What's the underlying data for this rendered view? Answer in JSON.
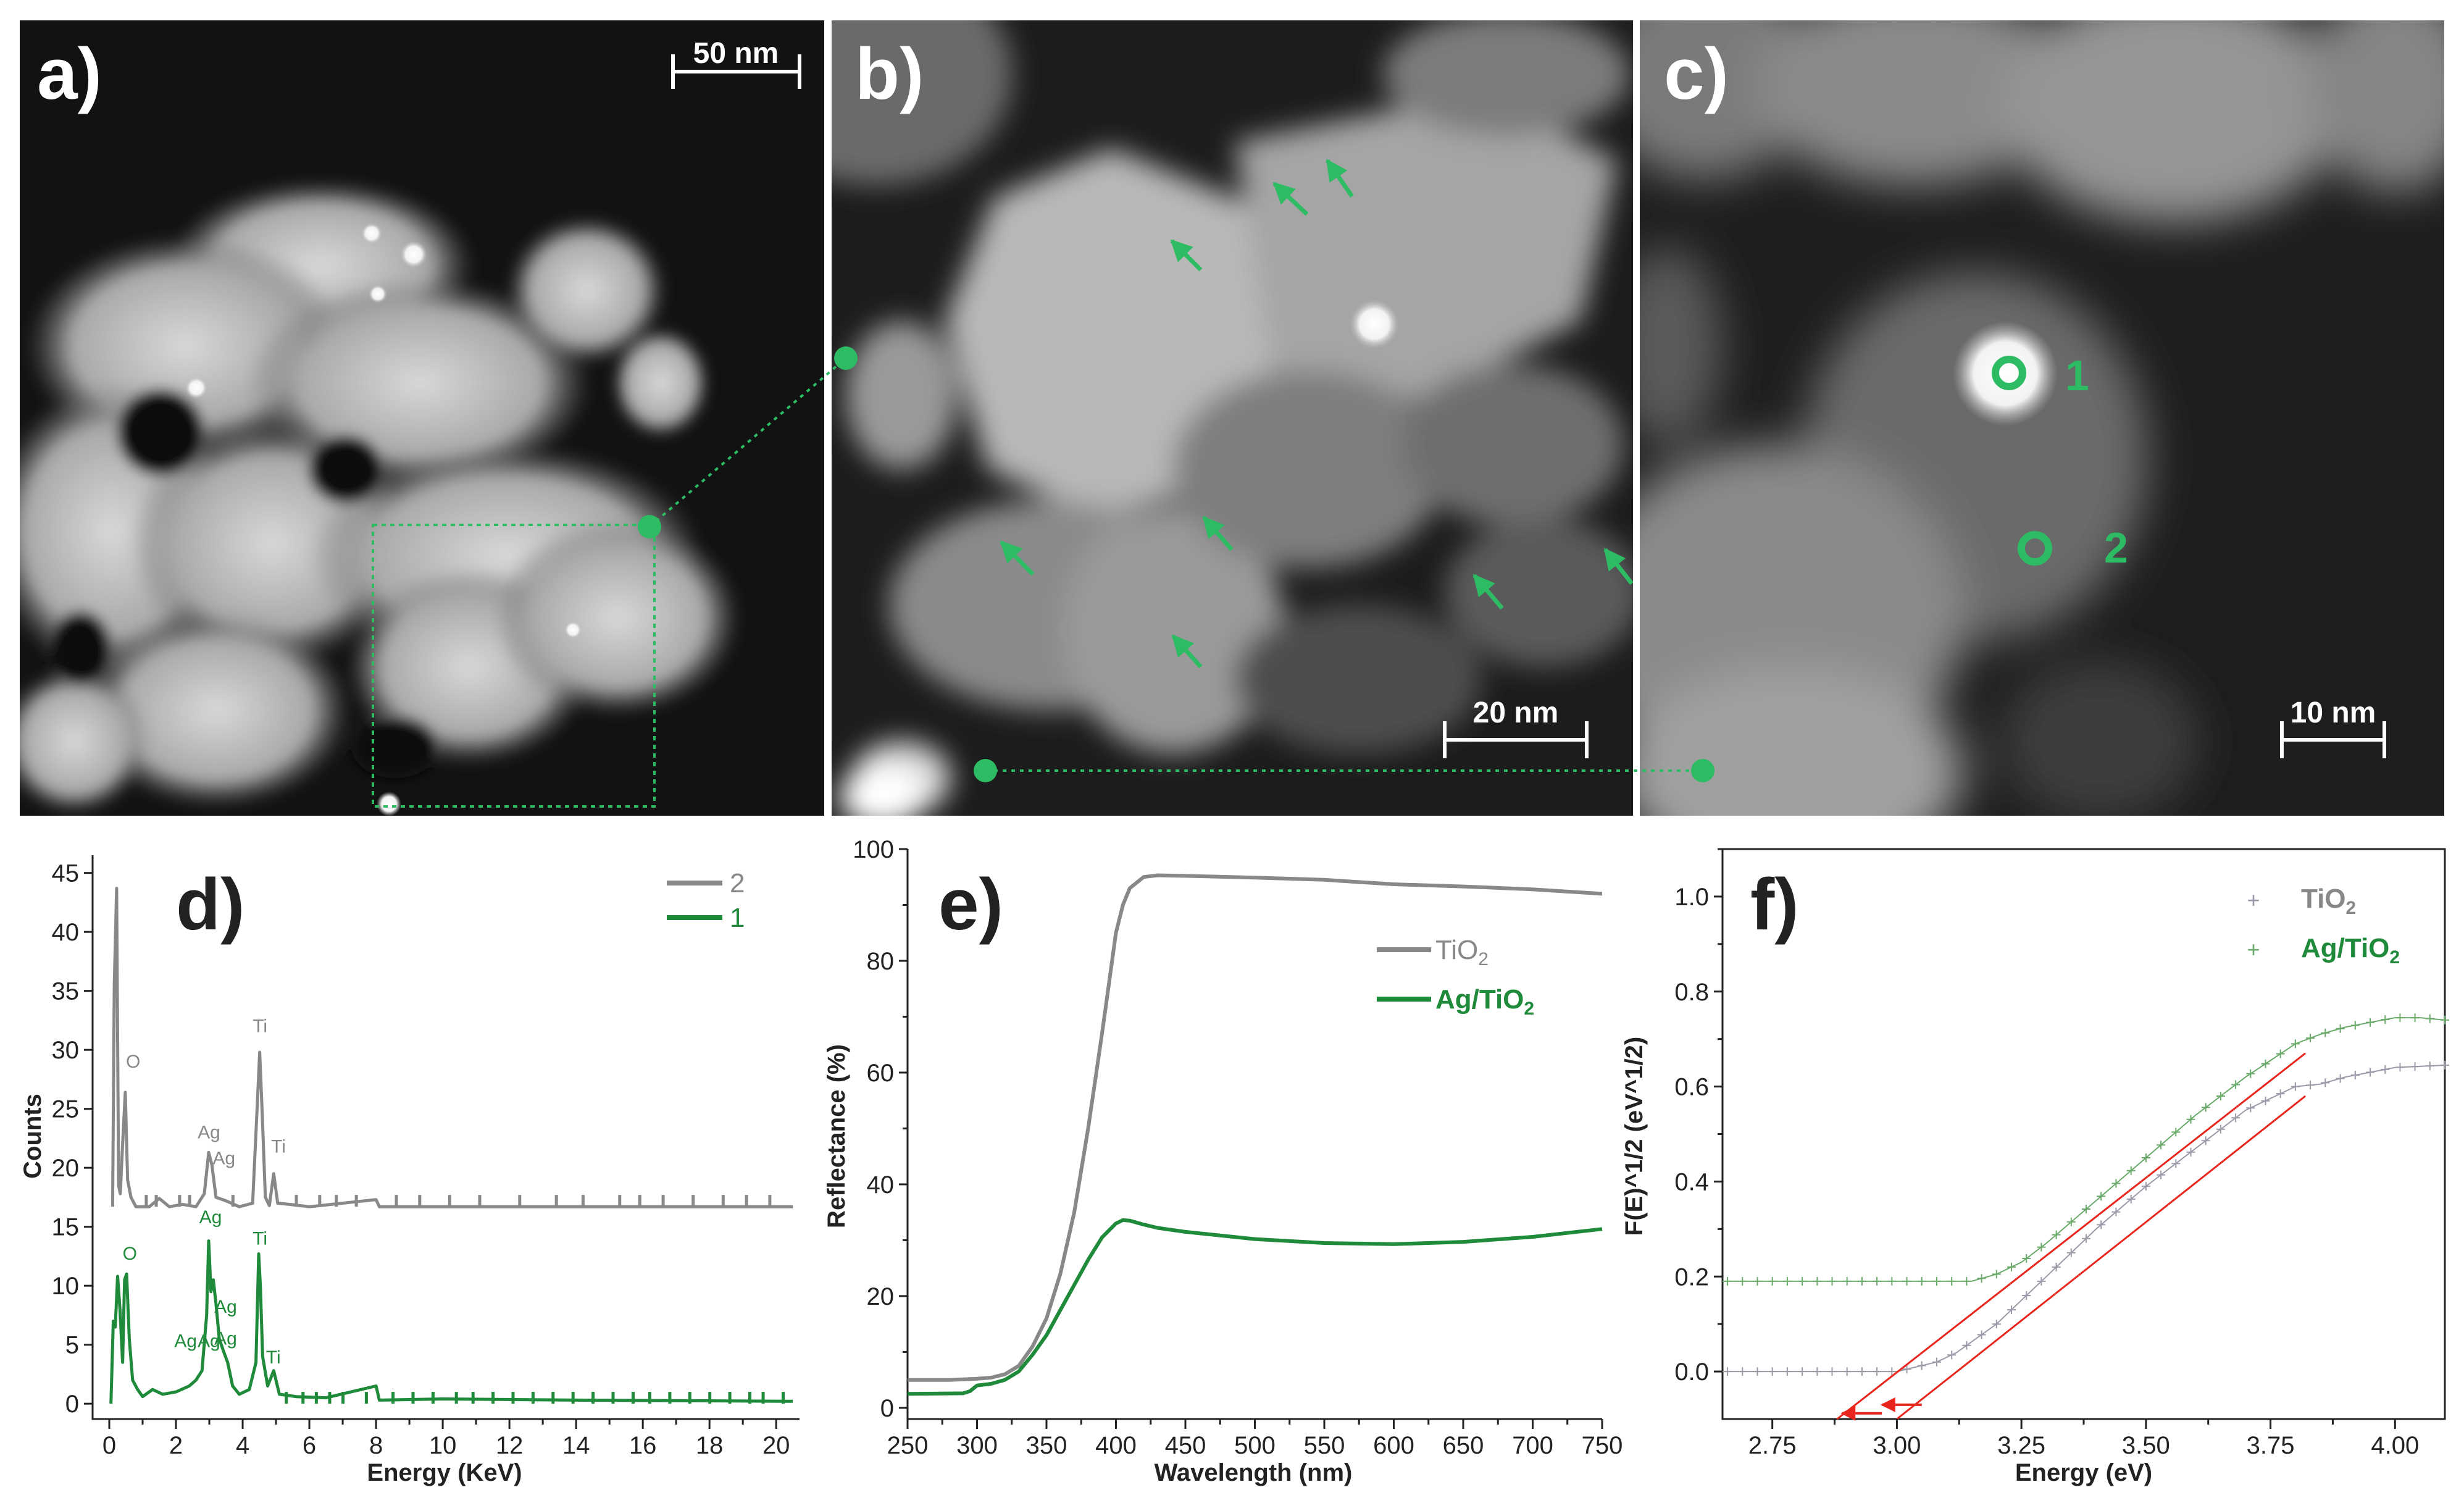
{
  "panels": {
    "a": {
      "label": "a)",
      "scalebar": "50 nm"
    },
    "b": {
      "label": "b)",
      "scalebar": "20 nm"
    },
    "c": {
      "label": "c)",
      "scalebar": "10 nm",
      "points": [
        "1",
        "2"
      ]
    }
  },
  "colors": {
    "green": "#1e8a3a",
    "marker_green": "#2dbb63",
    "grey": "#888888",
    "red": "#e8261e"
  },
  "chart_data": [
    {
      "panel": "d",
      "type": "line",
      "title": "d)",
      "xlabel": "Energy (KeV)",
      "ylabel": "Counts",
      "xlim": [
        -0.5,
        20.7
      ],
      "ylim": [
        -1.3,
        46.5
      ],
      "xticks": [
        "0",
        "2",
        "4",
        "6",
        "8",
        "10",
        "12",
        "14",
        "16",
        "18",
        "20"
      ],
      "xticks_minor": [
        1,
        3,
        5,
        7,
        9,
        11,
        13,
        15,
        17,
        19
      ],
      "yticks": [
        "0",
        "5",
        "10",
        "15",
        "20",
        "25",
        "30",
        "35",
        "40",
        "45"
      ],
      "legend": [
        "2",
        "1"
      ],
      "series": [
        {
          "name": "2",
          "color": "#888888",
          "baseline": 16.7,
          "points": [
            [
              0.1,
              16.7
            ],
            [
              0.15,
              35.5
            ],
            [
              0.22,
              43.7
            ],
            [
              0.28,
              18.5
            ],
            [
              0.33,
              17.8
            ],
            [
              0.4,
              22
            ],
            [
              0.48,
              26.4
            ],
            [
              0.55,
              19
            ],
            [
              0.65,
              17.5
            ],
            [
              0.8,
              16.7
            ],
            [
              1.2,
              16.7
            ],
            [
              1.5,
              17.4
            ],
            [
              1.8,
              16.7
            ],
            [
              2.2,
              16.9
            ],
            [
              2.6,
              16.7
            ],
            [
              2.85,
              17.8
            ],
            [
              2.98,
              21.3
            ],
            [
              3.08,
              20.2
            ],
            [
              3.2,
              17.5
            ],
            [
              3.5,
              17.2
            ],
            [
              3.9,
              16.7
            ],
            [
              4.3,
              17.0
            ],
            [
              4.45,
              26
            ],
            [
              4.51,
              29.8
            ],
            [
              4.58,
              25
            ],
            [
              4.68,
              17.5
            ],
            [
              4.8,
              16.8
            ],
            [
              4.93,
              19.5
            ],
            [
              5.05,
              17.0
            ],
            [
              5.4,
              16.9
            ],
            [
              6.0,
              16.7
            ],
            [
              8.0,
              17.3
            ],
            [
              8.1,
              16.7
            ],
            [
              20.5,
              16.7
            ]
          ],
          "spikes": [
            1.1,
            1.4,
            2.1,
            2.4,
            3.7,
            5.6,
            6.3,
            6.8,
            7.4,
            8.6,
            9.3,
            10.2,
            11.1,
            12.3,
            13.4,
            14.2,
            15.3,
            15.9,
            16.6,
            17.5,
            18.4,
            19.1,
            19.8
          ]
        },
        {
          "name": "1",
          "color": "#1e8a3a",
          "baseline": 0,
          "points": [
            [
              0.05,
              0
            ],
            [
              0.12,
              7
            ],
            [
              0.18,
              6.5
            ],
            [
              0.25,
              10.8
            ],
            [
              0.32,
              8
            ],
            [
              0.4,
              3.5
            ],
            [
              0.46,
              10.5
            ],
            [
              0.52,
              11
            ],
            [
              0.6,
              5.5
            ],
            [
              0.7,
              2
            ],
            [
              0.85,
              1.2
            ],
            [
              1.0,
              0.6
            ],
            [
              1.3,
              1.2
            ],
            [
              1.6,
              0.8
            ],
            [
              2.0,
              1.0
            ],
            [
              2.4,
              1.5
            ],
            [
              2.6,
              2.0
            ],
            [
              2.78,
              2.8
            ],
            [
              2.92,
              7.5
            ],
            [
              2.98,
              13.8
            ],
            [
              3.05,
              9.5
            ],
            [
              3.12,
              10.5
            ],
            [
              3.2,
              8.5
            ],
            [
              3.3,
              5.5
            ],
            [
              3.42,
              4.5
            ],
            [
              3.55,
              3.5
            ],
            [
              3.7,
              1.5
            ],
            [
              3.9,
              0.8
            ],
            [
              4.2,
              1.2
            ],
            [
              4.4,
              3.5
            ],
            [
              4.48,
              12.7
            ],
            [
              4.53,
              10
            ],
            [
              4.6,
              4
            ],
            [
              4.75,
              1.5
            ],
            [
              4.93,
              2.8
            ],
            [
              5.1,
              0.8
            ],
            [
              5.6,
              0.6
            ],
            [
              6.5,
              0.5
            ],
            [
              8.0,
              1.5
            ],
            [
              8.1,
              0.3
            ],
            [
              10.0,
              0.4
            ],
            [
              14.0,
              0.3
            ],
            [
              20.5,
              0.2
            ]
          ],
          "spikes": [
            5.3,
            5.8,
            6.2,
            6.6,
            7.0,
            7.7,
            8.5,
            9.1,
            9.7,
            10.4,
            10.9,
            11.5,
            12.1,
            12.7,
            13.3,
            13.9,
            14.5,
            15.1,
            15.7,
            16.2,
            16.8,
            17.4,
            18.0,
            18.6,
            19.2,
            19.6,
            20.2
          ]
        }
      ],
      "annotations": [
        {
          "text": "O",
          "series": "2",
          "x": 0.5,
          "y": 28.5
        },
        {
          "text": "Ag",
          "series": "2",
          "x": 2.65,
          "y": 22.5
        },
        {
          "text": "Ag",
          "series": "2",
          "x": 3.1,
          "y": 20.3
        },
        {
          "text": "Ti",
          "series": "2",
          "x": 4.3,
          "y": 31.5
        },
        {
          "text": "Ti",
          "series": "2",
          "x": 4.85,
          "y": 21.3
        },
        {
          "text": "O",
          "series": "1",
          "x": 0.4,
          "y": 12.2
        },
        {
          "text": "Ag",
          "series": "1",
          "x": 2.7,
          "y": 15.3
        },
        {
          "text": "Ag",
          "series": "1",
          "x": 3.15,
          "y": 7.7
        },
        {
          "text": "Ag",
          "series": "1",
          "x": 3.15,
          "y": 5.0
        },
        {
          "text": "Ag",
          "series": "1",
          "x": 1.95,
          "y": 4.8
        },
        {
          "text": "Ag",
          "series": "1",
          "x": 2.65,
          "y": 4.8
        },
        {
          "text": "Ti",
          "series": "1",
          "x": 4.3,
          "y": 13.5
        },
        {
          "text": "Ti",
          "series": "1",
          "x": 4.7,
          "y": 3.4
        }
      ]
    },
    {
      "panel": "e",
      "type": "line",
      "title": "e)",
      "xlabel": "Wavelength (nm)",
      "ylabel": "Reflectance (%)",
      "xlim": [
        250,
        750
      ],
      "ylim": [
        -2,
        100
      ],
      "xticks": [
        "250",
        "300",
        "350",
        "400",
        "450",
        "500",
        "550",
        "600",
        "650",
        "700",
        "750"
      ],
      "yticks": [
        "0",
        "20",
        "40",
        "60",
        "80",
        "100"
      ],
      "legend_position": "center-right",
      "series": [
        {
          "name": "TiO",
          "subscript": "2",
          "color": "#888888",
          "x": [
            250,
            280,
            300,
            310,
            320,
            330,
            340,
            350,
            360,
            370,
            380,
            390,
            395,
            400,
            405,
            410,
            420,
            430,
            450,
            500,
            550,
            600,
            650,
            700,
            750
          ],
          "y": [
            5,
            5,
            5.2,
            5.4,
            6,
            7.5,
            11,
            16,
            24,
            35,
            50,
            67,
            76,
            85,
            90,
            93,
            95,
            95.3,
            95.2,
            94.9,
            94.5,
            93.7,
            93.3,
            92.8,
            92
          ]
        },
        {
          "name": "Ag/TiO",
          "subscript": "2",
          "color": "#1e8a3a",
          "x": [
            250,
            290,
            295,
            300,
            310,
            320,
            330,
            340,
            350,
            360,
            370,
            380,
            390,
            400,
            405,
            410,
            420,
            430,
            450,
            500,
            550,
            600,
            650,
            700,
            750
          ],
          "y": [
            2.5,
            2.6,
            3,
            4,
            4.3,
            5,
            6.5,
            9.5,
            13,
            17.5,
            22,
            26.5,
            30.5,
            33,
            33.6,
            33.5,
            32.8,
            32.2,
            31.5,
            30.2,
            29.5,
            29.3,
            29.7,
            30.6,
            32
          ]
        }
      ]
    },
    {
      "panel": "f",
      "type": "scatter",
      "title": "f)",
      "xlabel": "Energy (eV)",
      "ylabel": "F(E)^1/2 (eV^1/2)",
      "xlim": [
        2.65,
        4.1
      ],
      "ylim": [
        -0.1,
        1.1
      ],
      "xticks": [
        "2.75",
        "3.00",
        "3.25",
        "3.50",
        "3.75",
        "4.00"
      ],
      "yticks": [
        "0.0",
        "0.2",
        "0.4",
        "0.6",
        "0.8",
        "1.0"
      ],
      "legend_position": "top-right",
      "series": [
        {
          "name": "TiO",
          "subscript": "2",
          "color": "#9a9aa8",
          "x": [
            2.65,
            3.0,
            3.08,
            3.12,
            3.16,
            3.2,
            3.25,
            3.3,
            3.4,
            3.5,
            3.6,
            3.7,
            3.8,
            3.85,
            3.9,
            3.95,
            4.0,
            4.1
          ],
          "y": [
            0,
            0,
            0.02,
            0.04,
            0.07,
            0.1,
            0.15,
            0.2,
            0.3,
            0.39,
            0.47,
            0.55,
            0.6,
            0.605,
            0.62,
            0.63,
            0.64,
            0.645
          ]
        },
        {
          "name": "Ag/TiO",
          "subscript": "2",
          "color": "#6aaa6a",
          "x": [
            2.65,
            3.15,
            3.2,
            3.25,
            3.3,
            3.4,
            3.5,
            3.6,
            3.7,
            3.8,
            3.85,
            3.9,
            3.95,
            4.0,
            4.05,
            4.1
          ],
          "y": [
            0.19,
            0.19,
            0.205,
            0.23,
            0.27,
            0.36,
            0.45,
            0.54,
            0.62,
            0.69,
            0.71,
            0.725,
            0.735,
            0.745,
            0.745,
            0.74
          ]
        }
      ],
      "fit_lines": [
        {
          "color": "#e8261e",
          "x": [
            2.88,
            3.82
          ],
          "y": [
            -0.1,
            0.67
          ]
        },
        {
          "color": "#e8261e",
          "x": [
            3.0,
            3.82
          ],
          "y": [
            -0.1,
            0.58
          ]
        }
      ],
      "band_gap_arrows": [
        {
          "from": 2.97,
          "to": 2.89
        },
        {
          "from": 3.05,
          "to": 2.97
        }
      ]
    }
  ]
}
